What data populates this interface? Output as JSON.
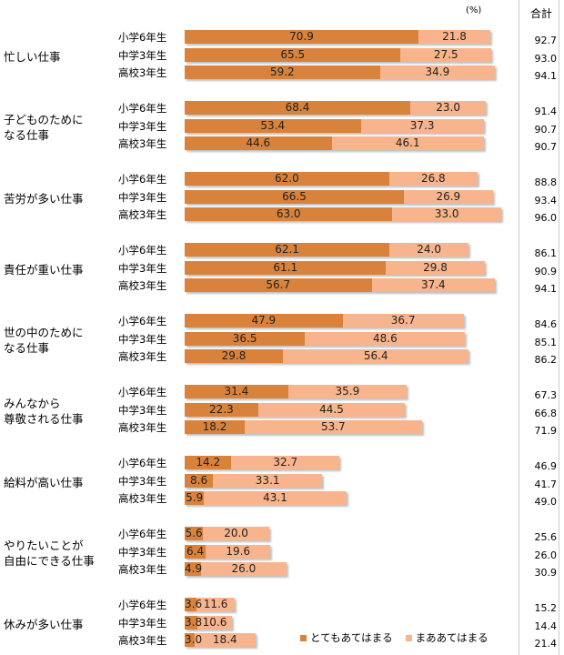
{
  "chart_data": {
    "type": "bar",
    "orientation": "horizontal-stacked",
    "unit_label": "(%)",
    "total_header": "合計",
    "series": [
      {
        "name": "とてもあてはまる",
        "color": "#D9823B"
      },
      {
        "name": "まああてはまる",
        "color": "#F8B48C"
      }
    ],
    "groups": [
      {
        "category": "忙しい仕事",
        "rows": [
          [
            "小学6年生",
            70.9,
            21.8,
            92.7
          ],
          [
            "中学3年生",
            65.5,
            27.5,
            93.0
          ],
          [
            "高校3年生",
            59.2,
            34.9,
            94.1
          ]
        ]
      },
      {
        "category": "子どものために\nなる仕事",
        "rows": [
          [
            "小学6年生",
            68.4,
            23.0,
            91.4
          ],
          [
            "中学3年生",
            53.4,
            37.3,
            90.7
          ],
          [
            "高校3年生",
            44.6,
            46.1,
            90.7
          ]
        ]
      },
      {
        "category": "苦労が多い仕事",
        "rows": [
          [
            "小学6年生",
            62.0,
            26.8,
            88.8
          ],
          [
            "中学3年生",
            66.5,
            26.9,
            93.4
          ],
          [
            "高校3年生",
            63.0,
            33.0,
            96.0
          ]
        ]
      },
      {
        "category": "責任が重い仕事",
        "rows": [
          [
            "小学6年生",
            62.1,
            24.0,
            86.1
          ],
          [
            "中学3年生",
            61.1,
            29.8,
            90.9
          ],
          [
            "高校3年生",
            56.7,
            37.4,
            94.1
          ]
        ]
      },
      {
        "category": "世の中のために\nなる仕事",
        "rows": [
          [
            "小学6年生",
            47.9,
            36.7,
            84.6
          ],
          [
            "中学3年生",
            36.5,
            48.6,
            85.1
          ],
          [
            "高校3年生",
            29.8,
            56.4,
            86.2
          ]
        ]
      },
      {
        "category": "みんなから\n尊敬される仕事",
        "rows": [
          [
            "小学6年生",
            31.4,
            35.9,
            67.3
          ],
          [
            "中学3年生",
            22.3,
            44.5,
            66.8
          ],
          [
            "高校3年生",
            18.2,
            53.7,
            71.9
          ]
        ]
      },
      {
        "category": "給料が高い仕事",
        "rows": [
          [
            "小学6年生",
            14.2,
            32.7,
            46.9
          ],
          [
            "中学3年生",
            8.6,
            33.1,
            41.7
          ],
          [
            "高校3年生",
            5.9,
            43.1,
            49.0
          ]
        ]
      },
      {
        "category": "やりたいことが\n自由にできる仕事",
        "rows": [
          [
            "小学6年生",
            5.6,
            20.0,
            25.6
          ],
          [
            "中学3年生",
            6.4,
            19.6,
            26.0
          ],
          [
            "高校3年生",
            4.9,
            26.0,
            30.9
          ]
        ]
      },
      {
        "category": "休みが多い仕事",
        "rows": [
          [
            "小学6年生",
            3.6,
            11.6,
            15.2
          ],
          [
            "中学3年生",
            3.8,
            10.6,
            14.4
          ],
          [
            "高校3年生",
            3.0,
            18.4,
            21.4
          ]
        ]
      }
    ]
  }
}
